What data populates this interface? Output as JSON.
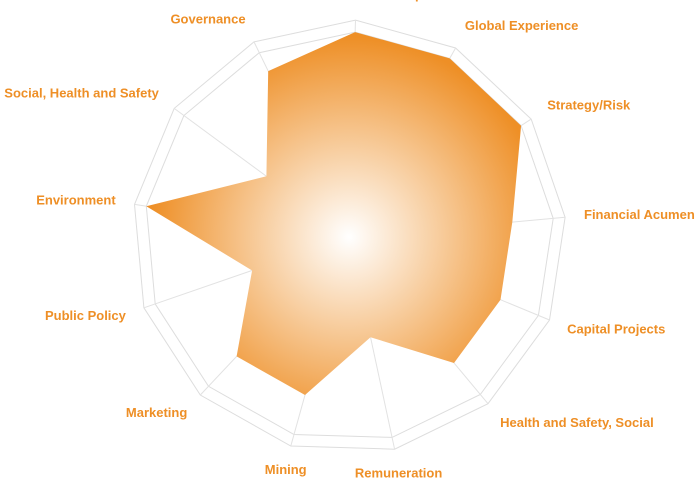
{
  "colors": {
    "accent": "#ee8f26",
    "accent_light": "#ffffff",
    "grid": "#dddddd",
    "spoke": "#e2e2e2",
    "label": "#ee8f26"
  },
  "chart_data": {
    "type": "radar",
    "title": "",
    "categories": [
      "Executive Leadership",
      "Global Experience",
      "Strategy/Risk",
      "Financial Acumen",
      "Capital Projects",
      "Health and Safety, Social",
      "Remuneration",
      "Mining",
      "Marketing",
      "Public Policy",
      "Environment",
      "Social, Health and Safety",
      "Governance"
    ],
    "series": [
      {
        "values": [
          10,
          10,
          10,
          8,
          8,
          8,
          5,
          8,
          8,
          5,
          10,
          5,
          9
        ]
      }
    ],
    "range": [
      0,
      10
    ],
    "gridlines": true,
    "grid_shape": "polygon",
    "legend": "none"
  }
}
